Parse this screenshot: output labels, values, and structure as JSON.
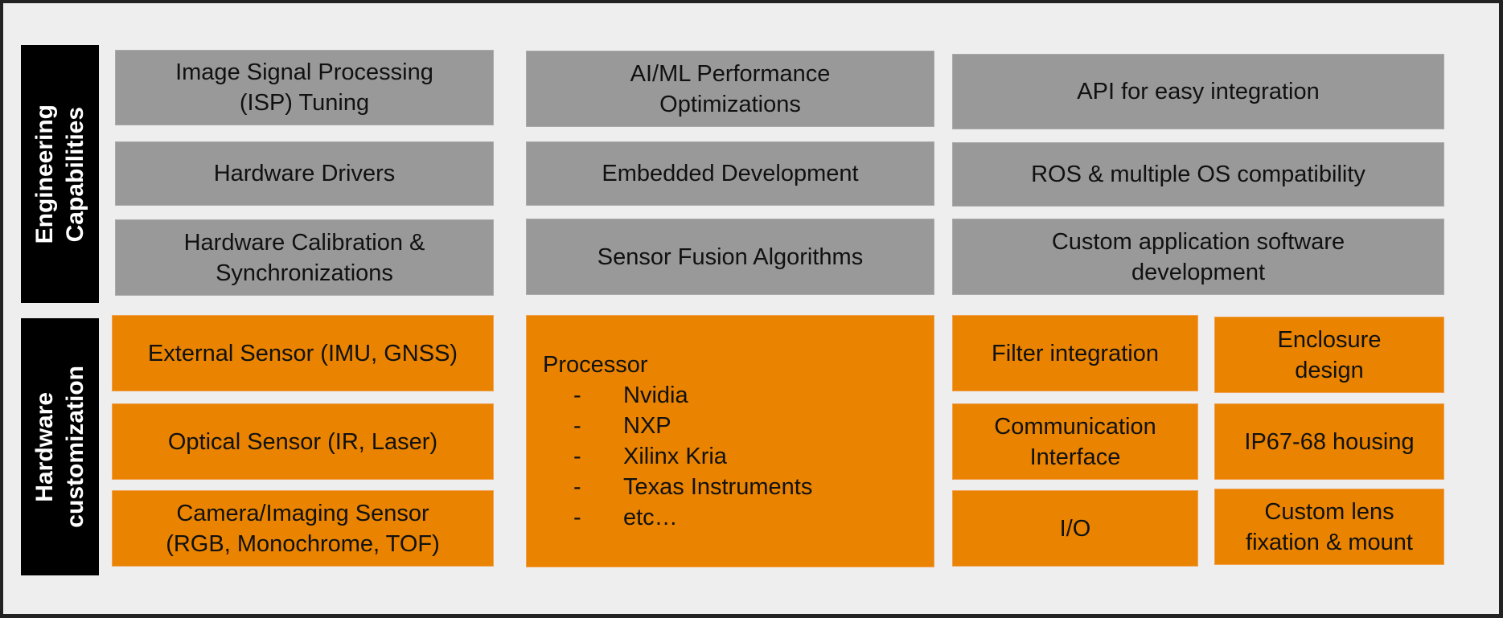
{
  "colors": {
    "engineering": "#999999",
    "hardware": "#e98300",
    "label_bar": "#000000",
    "background": "#eeeeee"
  },
  "engineering": {
    "label": [
      "Engineering",
      "Capabilities"
    ],
    "items": [
      [
        "Image Signal Processing",
        "(ISP) Tuning"
      ],
      [
        "AI/ML Performance",
        "Optimizations"
      ],
      [
        "API for easy integration"
      ],
      [
        "Hardware Drivers"
      ],
      [
        "Embedded Development"
      ],
      [
        "ROS & multiple OS compatibility"
      ],
      [
        "Hardware Calibration &",
        "Synchronizations"
      ],
      [
        "Sensor Fusion Algorithms"
      ],
      [
        "Custom application software",
        "development"
      ]
    ]
  },
  "hardware": {
    "label": [
      "Hardware",
      "customization"
    ],
    "sensors": [
      [
        "External Sensor (IMU, GNSS)"
      ],
      [
        "Optical Sensor (IR, Laser)"
      ],
      [
        "Camera/Imaging Sensor",
        "(RGB, Monochrome, TOF)"
      ]
    ],
    "processor": {
      "title": "Processor",
      "bullet": "-",
      "items": [
        "Nvidia",
        "NXP",
        "Xilinx Kria",
        "Texas Instruments",
        "etc…"
      ]
    },
    "interfaces": [
      [
        "Filter integration"
      ],
      [
        "Communication",
        "Interface"
      ],
      [
        "I/O"
      ]
    ],
    "mechanical": [
      [
        "Enclosure",
        "design"
      ],
      [
        "IP67-68 housing"
      ],
      [
        "Custom lens",
        "fixation & mount"
      ]
    ]
  }
}
